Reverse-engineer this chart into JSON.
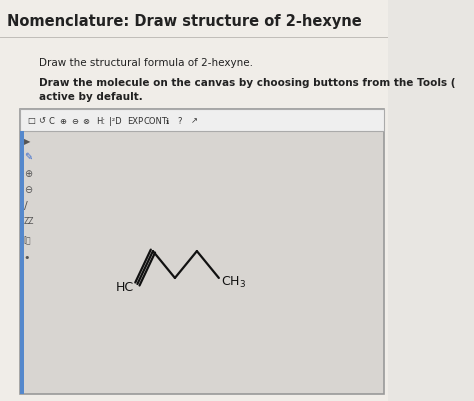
{
  "title": "Nomenclature: Draw structure of 2-hexyne",
  "instruction1": "Draw the structural formula of 2-hexyne.",
  "instruction2a": "Draw the molecule on the canvas by choosing buttons from the Tools (",
  "instruction2b": "active by default.",
  "bg_color": "#e8e6e2",
  "canvas_bg": "#d8d5d0",
  "title_color": "#222222",
  "text_color": "#222222",
  "molecule_color": "#111111",
  "hc_label": "HC",
  "ch3_label": "CH$_3$"
}
